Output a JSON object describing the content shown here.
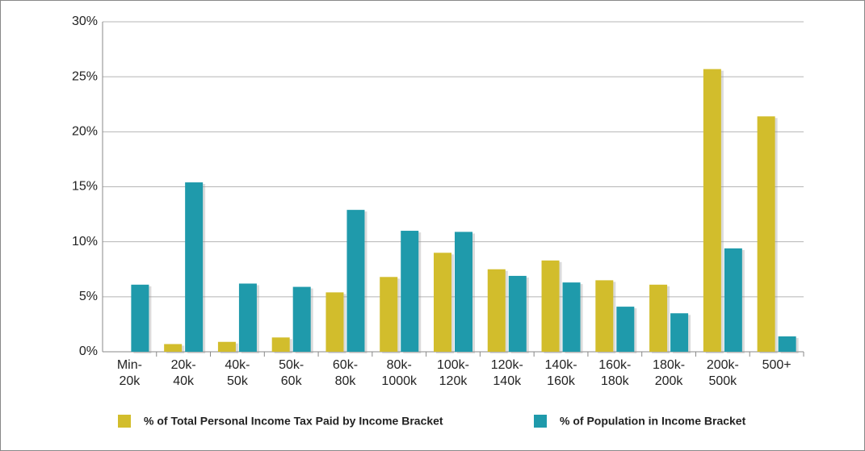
{
  "chart_data": {
    "type": "bar",
    "categories": [
      [
        "Min-",
        "20k"
      ],
      [
        "20k-",
        "40k"
      ],
      [
        "40k-",
        "50k"
      ],
      [
        "50k-",
        "60k"
      ],
      [
        "60k-",
        "80k"
      ],
      [
        "80k-",
        "1000k"
      ],
      [
        "100k-",
        "120k"
      ],
      [
        "120k-",
        "140k"
      ],
      [
        "140k-",
        "160k"
      ],
      [
        "160k-",
        "180k"
      ],
      [
        "180k-",
        "200k"
      ],
      [
        "200k-",
        "500k"
      ],
      [
        "500+"
      ]
    ],
    "series": [
      {
        "name": "% of Total Personal Income Tax Paid by Income Bracket",
        "color": "#d2bd2c",
        "values": [
          0,
          0.7,
          0.9,
          1.3,
          5.4,
          6.8,
          9.0,
          7.5,
          8.3,
          6.5,
          6.1,
          25.7,
          21.4
        ]
      },
      {
        "name": "% of Population in Income Bracket",
        "color": "#1f9aab",
        "values": [
          6.1,
          15.4,
          6.2,
          5.9,
          12.9,
          11.0,
          10.9,
          6.9,
          6.3,
          4.1,
          3.5,
          9.4,
          1.4
        ]
      }
    ],
    "ylim": [
      0,
      30
    ],
    "yticks": [
      {
        "value": 0,
        "label": "0%"
      },
      {
        "value": 5,
        "label": "5%"
      },
      {
        "value": 10,
        "label": "10%"
      },
      {
        "value": 15,
        "label": "15%"
      },
      {
        "value": 20,
        "label": "20%"
      },
      {
        "value": 25,
        "label": "25%"
      },
      {
        "value": 30,
        "label": "30%"
      }
    ],
    "grid": true,
    "legend": "bottom"
  }
}
